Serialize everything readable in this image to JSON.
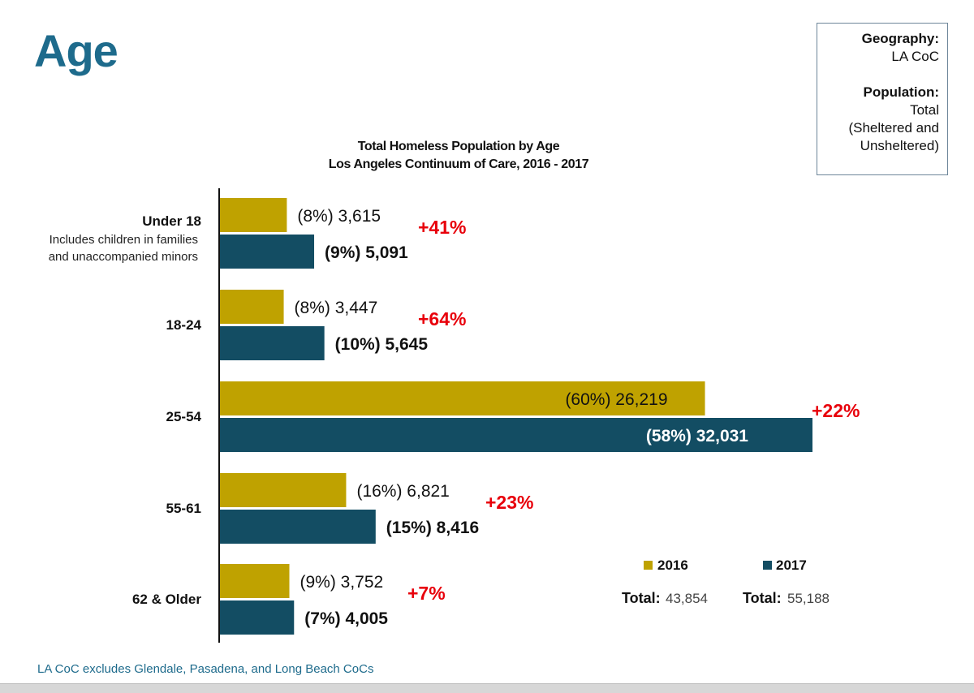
{
  "page": {
    "title": "Age",
    "footnote": "LA CoC excludes Glendale, Pasadena, and Long Beach CoCs"
  },
  "info_box": {
    "geography_label": "Geography:",
    "geography_value": "LA CoC",
    "population_label": "Population:",
    "population_lines": [
      "Total",
      "(Sheltered and",
      "Unsheltered)"
    ]
  },
  "colors": {
    "s2016": "#bfa200",
    "s2017": "#134d63",
    "change": "#e8000b",
    "title": "#1e6b8c"
  },
  "chart_data": {
    "type": "bar",
    "orientation": "horizontal",
    "title_lines": [
      "Total Homeless Population by Age",
      "Los Angeles Continuum of Care, 2016 - 2017"
    ],
    "xlim": [
      0,
      33000
    ],
    "grid": false,
    "legend_position": "bottom-right",
    "categories": [
      {
        "label": "Under 18",
        "sub": [
          "Includes children in families",
          "and unaccompanied minors"
        ]
      },
      {
        "label": "18-24",
        "sub": []
      },
      {
        "label": "25-54",
        "sub": []
      },
      {
        "label": "55-61",
        "sub": []
      },
      {
        "label": "62 & Older",
        "sub": []
      }
    ],
    "series": [
      {
        "name": "2016",
        "values": [
          3615,
          3447,
          26219,
          6821,
          3752
        ],
        "labels": [
          "(8%) 3,615",
          "(8%) 3,447",
          "(60%) 26,219",
          "(16%) 6,821",
          "(9%) 3,752"
        ],
        "total_label": "Total:",
        "total_value": "43,854"
      },
      {
        "name": "2017",
        "values": [
          5091,
          5645,
          32031,
          8416,
          4005
        ],
        "labels": [
          "(9%) 5,091",
          "(10%) 5,645",
          "(58%) 32,031",
          "(15%) 8,416",
          "(7%) 4,005"
        ],
        "total_label": "Total:",
        "total_value": "55,188"
      }
    ],
    "changes": [
      "+41%",
      "+64%",
      "+22%",
      "+23%",
      "+7%"
    ]
  }
}
